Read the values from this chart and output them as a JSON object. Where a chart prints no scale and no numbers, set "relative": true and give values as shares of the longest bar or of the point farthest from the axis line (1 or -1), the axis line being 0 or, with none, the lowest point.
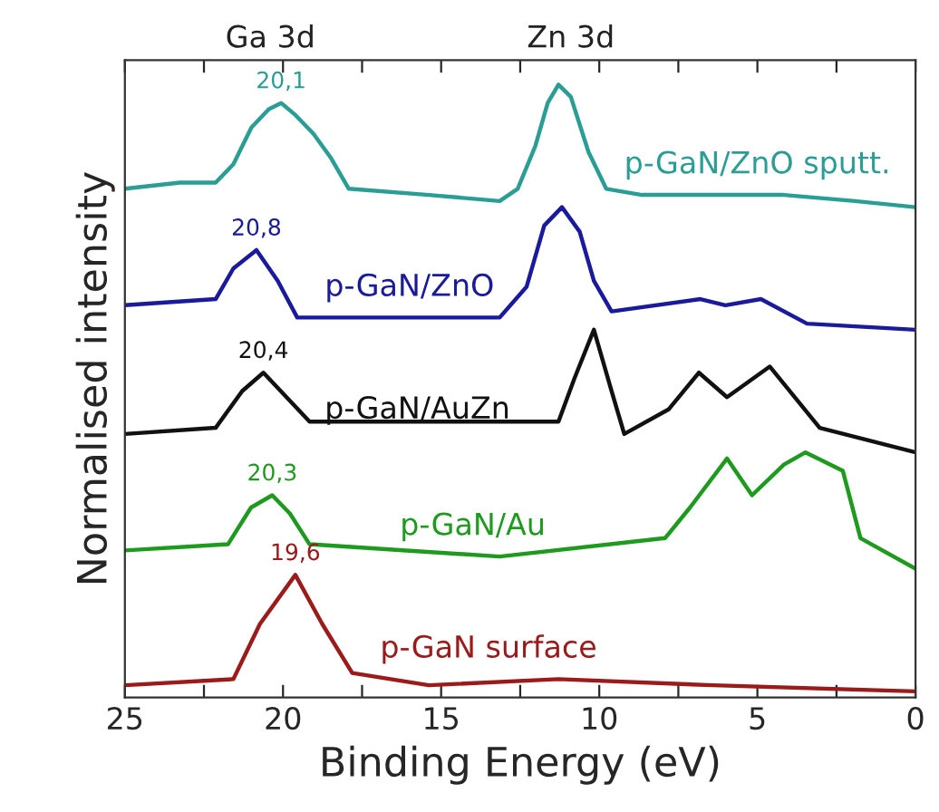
{
  "chart_data": {
    "type": "line",
    "relative": true,
    "xlabel": "Binding Energy (eV)",
    "ylabel": "Normalised intensity",
    "xlim": [
      25,
      0
    ],
    "xticks": [
      25,
      {
        "value": 22.5,
        "label": null
      },
      20,
      {
        "value": 17.5,
        "label": null
      },
      15,
      {
        "value": 12.5,
        "label": null
      },
      10,
      {
        "value": 7.5,
        "label": null
      },
      5,
      {
        "value": 2.5,
        "label": null
      },
      0
    ],
    "grid": false,
    "legend": false,
    "marker": "none",
    "line_style": "solid",
    "series": [
      {
        "name": "p-GaN/ZnO sputt.",
        "color": "#2a9d94",
        "x": [
          25,
          23.26,
          22.13,
          21.57,
          21.0,
          20.45,
          20.06,
          19.6,
          19.04,
          18.48,
          17.92,
          15.39,
          13.15,
          12.58,
          12.02,
          11.63,
          11.29,
          10.9,
          10.34,
          9.78,
          8.65,
          6.4,
          4.16,
          1.91,
          0
        ],
        "values": [
          0.83,
          0.84,
          0.84,
          0.87,
          0.93,
          0.96,
          0.97,
          0.95,
          0.92,
          0.88,
          0.83,
          0.82,
          0.81,
          0.83,
          0.9,
          0.97,
          1.0,
          0.98,
          0.89,
          0.83,
          0.82,
          0.82,
          0.82,
          0.81,
          0.8
        ]
      },
      {
        "name": "p-GaN/ZnO",
        "color": "#1a1a9c",
        "x": [
          25,
          22.13,
          21.57,
          20.84,
          20.17,
          19.55,
          13.15,
          12.3,
          11.74,
          11.18,
          10.62,
          10.17,
          9.61,
          6.8,
          6.01,
          4.89,
          3.43,
          0
        ],
        "values": [
          0.64,
          0.65,
          0.7,
          0.73,
          0.68,
          0.62,
          0.62,
          0.67,
          0.77,
          0.8,
          0.76,
          0.68,
          0.63,
          0.65,
          0.64,
          0.65,
          0.61,
          0.6
        ]
      },
      {
        "name": "p-GaN/AuZn",
        "color": "#111111",
        "x": [
          25,
          22.13,
          21.29,
          20.62,
          19.89,
          19.16,
          11.29,
          10.79,
          10.17,
          9.61,
          9.21,
          7.81,
          6.85,
          5.96,
          4.61,
          3.03,
          0
        ],
        "values": [
          0.43,
          0.44,
          0.5,
          0.53,
          0.49,
          0.45,
          0.45,
          0.52,
          0.6,
          0.5,
          0.43,
          0.47,
          0.53,
          0.49,
          0.54,
          0.44,
          0.4
        ]
      },
      {
        "name": "p-GaN/Au",
        "color": "#1e9a1e",
        "x": [
          25,
          21.74,
          21.01,
          20.34,
          19.78,
          19.16,
          13.15,
          7.92,
          7.13,
          5.96,
          5.17,
          4.16,
          3.48,
          2.3,
          1.74,
          0
        ],
        "values": [
          0.24,
          0.25,
          0.31,
          0.33,
          0.3,
          0.25,
          0.23,
          0.26,
          0.31,
          0.39,
          0.33,
          0.38,
          0.4,
          0.37,
          0.26,
          0.21
        ]
      },
      {
        "name": "p-GaN surface",
        "color": "#9b1b1b",
        "x": [
          25,
          21.57,
          20.73,
          19.61,
          18.76,
          17.81,
          15.39,
          11.29,
          6.4,
          0
        ],
        "values": [
          0.02,
          0.03,
          0.12,
          0.2,
          0.12,
          0.04,
          0.02,
          0.03,
          0.02,
          0.01
        ]
      }
    ],
    "annotations": [
      "Ga 3d",
      "Zn 3d",
      {
        "text": "20,1",
        "x": 20.06,
        "y": 0.97
      },
      {
        "text": "20,8",
        "x": 20.84,
        "y": 0.73
      },
      {
        "text": "20,4",
        "x": 20.62,
        "y": 0.53
      },
      {
        "text": "20,3",
        "x": 20.34,
        "y": 0.33
      },
      {
        "text": "19,6",
        "x": 19.61,
        "y": 0.2
      }
    ]
  }
}
